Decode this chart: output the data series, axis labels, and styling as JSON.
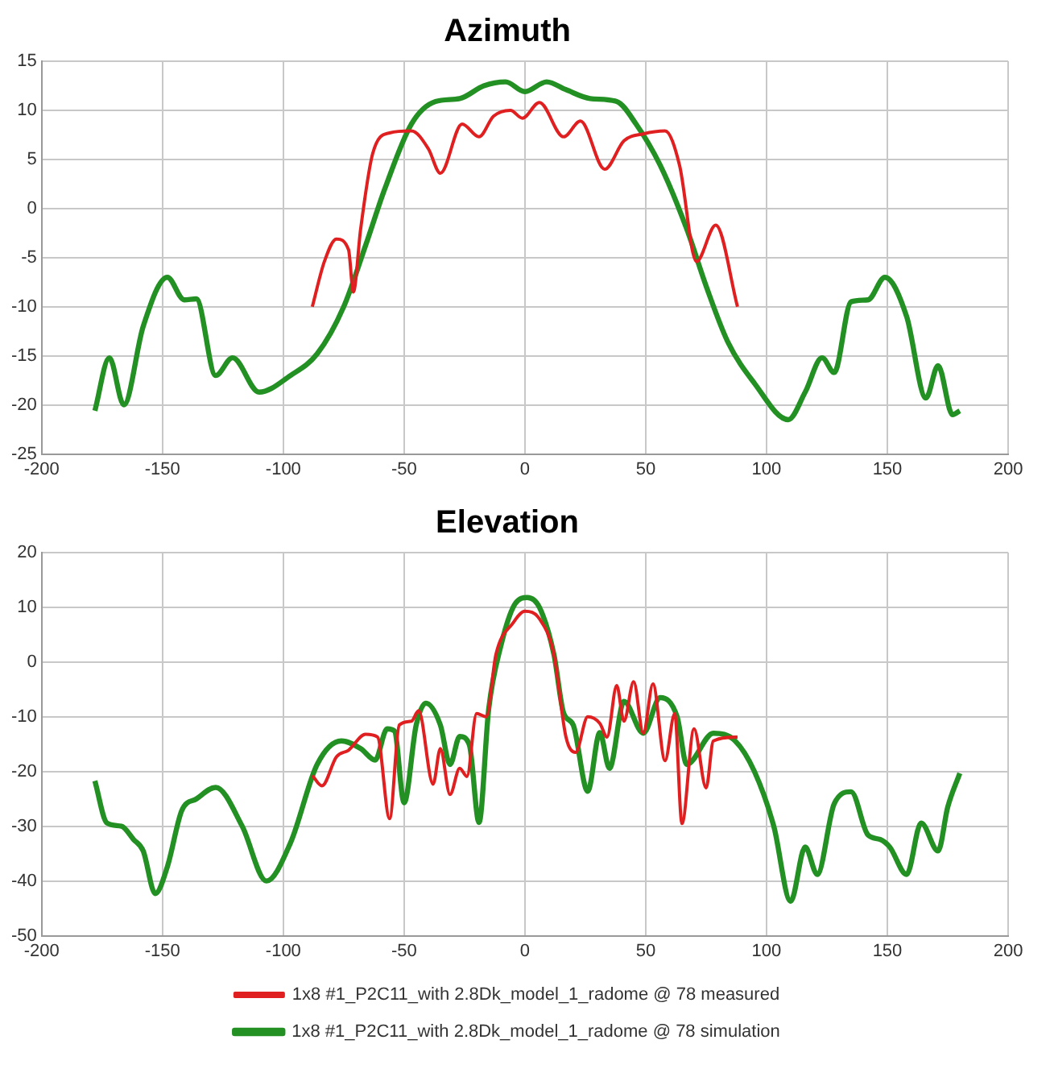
{
  "chart_data": [
    {
      "type": "line",
      "title": "Azimuth",
      "xlim": [
        -200,
        200
      ],
      "xticks": [
        -200,
        -150,
        -100,
        -50,
        0,
        50,
        100,
        150,
        200
      ],
      "ylim": [
        -25,
        15
      ],
      "yticks": [
        -25,
        -20,
        -15,
        -10,
        -5,
        0,
        5,
        10,
        15
      ],
      "grid": true,
      "legend": false,
      "marker": "none",
      "line_style": "solid",
      "series": [
        {
          "color": "#e02020",
          "x": [
            -88,
            -83,
            -78,
            -73,
            -71,
            -68,
            -63,
            -56,
            -47,
            -40,
            -35,
            -26,
            -19,
            -13,
            -6,
            -1,
            6,
            16,
            23,
            33,
            41,
            49,
            58,
            64,
            71,
            79,
            88
          ],
          "values": [
            -10,
            -5.4,
            -3.1,
            -4.2,
            -8.5,
            -2.1,
            5.6,
            7.7,
            7.9,
            6.1,
            3.6,
            8.6,
            7.3,
            9.4,
            10,
            9.2,
            10.8,
            7.3,
            8.9,
            4,
            6.9,
            7.6,
            7.9,
            4.4,
            -5.4,
            -1.7,
            -10
          ]
        },
        {
          "color": "#229022",
          "x": [
            -178,
            -172,
            -166,
            -158,
            -148,
            -141,
            -136,
            -128,
            -121,
            -110,
            -97,
            -86,
            -75,
            -66,
            -58,
            -47,
            -37,
            -27,
            -17,
            -8,
            0,
            9,
            17,
            27,
            38,
            46,
            56,
            67,
            75,
            84,
            95,
            109,
            116,
            123,
            128,
            135,
            142,
            149,
            158,
            166,
            171,
            177,
            180
          ],
          "values": [
            -20.6,
            -15.2,
            -20,
            -12,
            -7,
            -9.3,
            -9.2,
            -17,
            -15.2,
            -18.7,
            -17,
            -14.8,
            -10,
            -3.8,
            2,
            8.6,
            10.9,
            11.2,
            12.5,
            12.9,
            11.9,
            12.9,
            12.1,
            11.2,
            10.9,
            8.6,
            4.4,
            -2.1,
            -7.9,
            -13.6,
            -17.8,
            -21.5,
            -18.7,
            -15.2,
            -16.7,
            -9.5,
            -9.3,
            -7,
            -11,
            -19.3,
            -16,
            -21,
            -20.6
          ]
        }
      ]
    },
    {
      "type": "line",
      "title": "Elevation",
      "xlim": [
        -200,
        200
      ],
      "xticks": [
        -200,
        -150,
        -100,
        -50,
        0,
        50,
        100,
        150,
        200
      ],
      "ylim": [
        -50,
        20
      ],
      "yticks": [
        -50,
        -40,
        -30,
        -20,
        -10,
        0,
        10,
        20
      ],
      "grid": true,
      "legend": "bottom",
      "marker": "none",
      "line_style": "solid",
      "series": [
        {
          "name": "1x8 #1_P2C11_with 2.8Dk_model_1_radome @ 78 measured",
          "color": "#e02020",
          "x": [
            -88,
            -84,
            -78,
            -73,
            -66,
            -61,
            -56,
            -52,
            -47,
            -44,
            -38,
            -35,
            -31,
            -27,
            -24,
            -20,
            -16,
            -12,
            -5,
            0,
            6,
            12,
            17,
            21,
            26,
            31,
            34,
            38,
            41,
            45,
            49,
            53,
            58,
            62,
            65,
            70,
            75,
            78,
            88
          ],
          "values": [
            -20.7,
            -22.6,
            -17.3,
            -16.1,
            -13.2,
            -13.7,
            -28.6,
            -11.5,
            -10.8,
            -8.9,
            -22.3,
            -15.8,
            -24.2,
            -19.4,
            -20.9,
            -9.4,
            -10,
            1.4,
            7.1,
            9.3,
            7.9,
            1.4,
            -13.7,
            -16.5,
            -10,
            -11.2,
            -13.7,
            -4.3,
            -10.8,
            -3.6,
            -13,
            -4,
            -18,
            -9.4,
            -29.5,
            -12.2,
            -23,
            -14.4,
            -13.7
          ]
        },
        {
          "name": "1x8 #1_P2C11_with 2.8Dk_model_1_radome @ 78 simulation",
          "color": "#229022",
          "x": [
            -178,
            -173,
            -167,
            -162,
            -158,
            -153,
            -148,
            -142,
            -136,
            -128,
            -117,
            -107,
            -97,
            -86,
            -76,
            -68,
            -62,
            -57,
            -54,
            -50,
            -45,
            -41,
            -35,
            -31,
            -27,
            -23,
            -19,
            -15,
            -10,
            -4,
            1,
            6,
            12,
            16,
            20,
            26,
            31,
            35,
            41,
            49,
            56,
            63,
            67,
            78,
            87,
            95,
            103,
            110,
            116,
            121,
            128,
            135,
            142,
            147,
            151,
            158,
            164,
            171,
            175,
            180
          ],
          "values": [
            -21.7,
            -29.4,
            -30,
            -32.4,
            -34.5,
            -42.3,
            -37.4,
            -27.1,
            -25,
            -22.9,
            -30,
            -40,
            -33,
            -18.7,
            -14.4,
            -15.8,
            -17.9,
            -12.2,
            -12.6,
            -25.7,
            -11.5,
            -7.5,
            -11.5,
            -18.7,
            -13.6,
            -15.1,
            -29.3,
            -8.6,
            2.9,
            10.7,
            11.8,
            10,
            1.4,
            -9.3,
            -11.5,
            -23.6,
            -12.9,
            -19.4,
            -7.2,
            -13,
            -6.5,
            -10,
            -18.7,
            -13,
            -14.4,
            -20,
            -30,
            -43.7,
            -33.8,
            -38.8,
            -25.9,
            -23.7,
            -31.6,
            -32.4,
            -33.8,
            -38.8,
            -29.4,
            -34.5,
            -26.5,
            -20.3
          ]
        }
      ]
    }
  ]
}
